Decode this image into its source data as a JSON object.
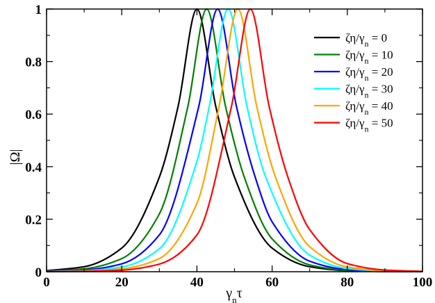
{
  "chart_data": {
    "type": "line",
    "title": "",
    "xlabel": "γ_nτ",
    "ylabel": "|Ω|",
    "xlim": [
      0,
      100
    ],
    "ylim": [
      0,
      1
    ],
    "x_ticks": [
      0,
      20,
      40,
      60,
      80,
      100
    ],
    "y_ticks": [
      0,
      0.2,
      0.4,
      0.6,
      0.8,
      1
    ],
    "x_tick_labels": [
      "0",
      "20",
      "40",
      "60",
      "80",
      "100"
    ],
    "y_tick_labels": [
      "0",
      "0.2",
      "0.4",
      "0.6",
      "0.8",
      "1"
    ],
    "grid": false,
    "legend_position": "top-right",
    "series": [
      {
        "name": "ζη/γ_n = 0",
        "color": "#000000",
        "x": [
          0,
          10,
          20,
          30,
          35,
          40,
          45,
          50,
          60,
          70,
          80,
          90,
          100
        ],
        "y": [
          0.004,
          0.019,
          0.09,
          0.36,
          0.63,
          1.0,
          0.63,
          0.36,
          0.09,
          0.019,
          0.004,
          0.001,
          0.0002
        ]
      },
      {
        "name": "ζη/γ_n = 10",
        "color": "#008000",
        "x": [
          0,
          10,
          20,
          30,
          37.6,
          42.6,
          47.6,
          52.6,
          60,
          70,
          80,
          90,
          100
        ],
        "y": [
          0.0025,
          0.011,
          0.05,
          0.22,
          0.63,
          1.0,
          0.63,
          0.36,
          0.125,
          0.026,
          0.005,
          0.001,
          0.0002
        ]
      },
      {
        "name": "ζη/γ_n = 20",
        "color": "#0000ff",
        "x": [
          0,
          10,
          20,
          30,
          40.5,
          45.5,
          50.5,
          55.5,
          60,
          70,
          80,
          90,
          100
        ],
        "y": [
          0.0015,
          0.0065,
          0.03,
          0.14,
          0.63,
          1.0,
          0.63,
          0.36,
          0.19,
          0.04,
          0.008,
          0.0016,
          0.0003
        ]
      },
      {
        "name": "ζη/γ_n = 30",
        "color": "#00ffff",
        "x": [
          0,
          10,
          20,
          30,
          40,
          43.3,
          48.3,
          53.3,
          58.3,
          70,
          80,
          90,
          100
        ],
        "y": [
          0.001,
          0.004,
          0.018,
          0.087,
          0.42,
          0.63,
          1.0,
          0.63,
          0.36,
          0.063,
          0.012,
          0.0025,
          0.0005
        ]
      },
      {
        "name": "ζη/γ_n = 40",
        "color": "#ffa500",
        "x": [
          0,
          10,
          20,
          30,
          40,
          45.9,
          50.9,
          55.9,
          60.9,
          70,
          80,
          90,
          100
        ],
        "y": [
          0.0005,
          0.0025,
          0.011,
          0.05,
          0.26,
          0.63,
          1.0,
          0.63,
          0.36,
          0.095,
          0.018,
          0.0037,
          0.0007
        ]
      },
      {
        "name": "ζη/γ_n = 50",
        "color": "#ff0000",
        "x": [
          0,
          10,
          20,
          30,
          40,
          49.2,
          54.2,
          59.2,
          64.2,
          70,
          80,
          90,
          100
        ],
        "y": [
          0.0003,
          0.0014,
          0.006,
          0.029,
          0.14,
          0.63,
          1.0,
          0.63,
          0.36,
          0.16,
          0.031,
          0.0064,
          0.0013
        ]
      }
    ]
  }
}
